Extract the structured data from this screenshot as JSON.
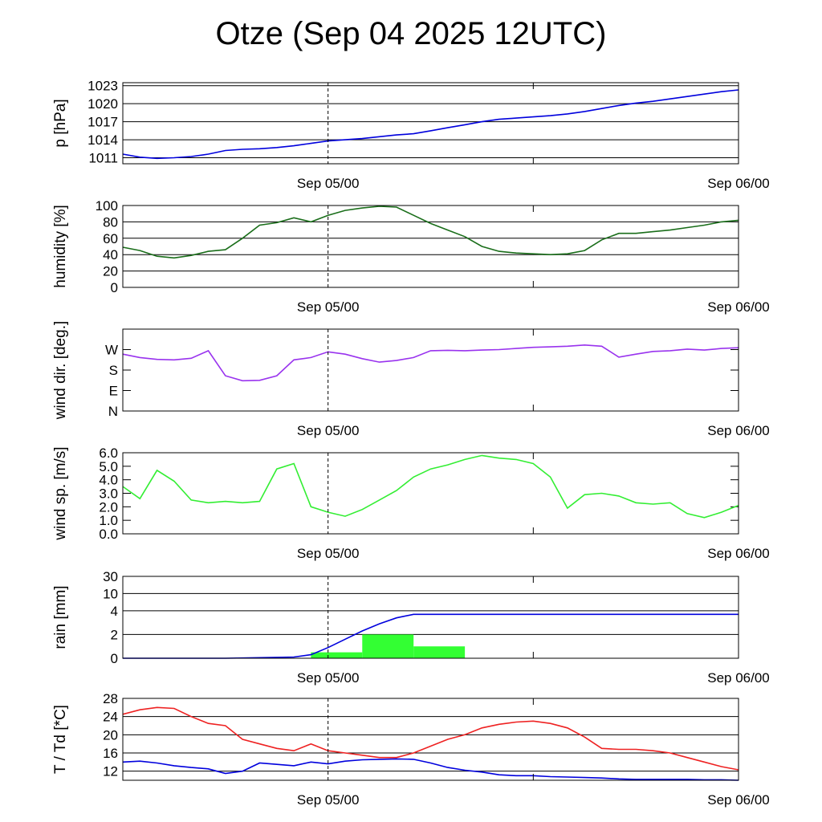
{
  "title": "Otze (Sep 04 2025 12UTC)",
  "chart_data": [
    {
      "type": "line",
      "ylabel": "p [hPa]",
      "x_ticks": [
        "Sep 05/00",
        "Sep 06/00"
      ],
      "x_range": [
        "Sep 04 12UTC",
        "Sep 06 00UTC"
      ],
      "ylim": [
        1010,
        1023.5
      ],
      "y_ticks": [
        1011,
        1014,
        1017,
        1020,
        1023
      ],
      "y_tick_labels": [
        "1011",
        "1014",
        "1017",
        "1020",
        "1023"
      ],
      "grid": true,
      "series": [
        {
          "color": "#0000dd",
          "x": [
            0,
            1,
            2,
            3,
            4,
            5,
            6,
            7,
            8,
            9,
            10,
            11,
            12,
            13,
            14,
            15,
            16,
            17,
            18,
            19,
            20,
            21,
            22,
            23,
            24,
            25,
            26,
            27,
            28,
            29,
            30,
            31,
            32,
            33,
            34,
            35,
            36
          ],
          "values": [
            1011.6,
            1011.1,
            1010.9,
            1011.0,
            1011.2,
            1011.6,
            1012.2,
            1012.4,
            1012.5,
            1012.7,
            1013.0,
            1013.4,
            1013.8,
            1014.0,
            1014.2,
            1014.5,
            1014.8,
            1015.0,
            1015.5,
            1016.0,
            1016.5,
            1017.0,
            1017.4,
            1017.6,
            1017.8,
            1018.0,
            1018.3,
            1018.7,
            1019.2,
            1019.7,
            1020.1,
            1020.4,
            1020.8,
            1021.2,
            1021.6,
            1022.0,
            1022.3
          ]
        }
      ]
    },
    {
      "type": "line",
      "ylabel": "humidity [%]",
      "x_ticks": [
        "Sep 05/00",
        "Sep 06/00"
      ],
      "ylim": [
        0,
        100
      ],
      "y_ticks": [
        0,
        20,
        40,
        60,
        80,
        100
      ],
      "y_tick_labels": [
        "0",
        "20",
        "40",
        "60",
        "80",
        "100"
      ],
      "grid": true,
      "series": [
        {
          "color": "#1a6e1a",
          "x": [
            0,
            1,
            2,
            3,
            4,
            5,
            6,
            7,
            8,
            9,
            10,
            11,
            12,
            13,
            14,
            15,
            16,
            17,
            18,
            19,
            20,
            21,
            22,
            23,
            24,
            25,
            26,
            27,
            28,
            29,
            30,
            31,
            32,
            33,
            34,
            35,
            36
          ],
          "values": [
            49,
            45,
            38,
            36,
            39,
            44,
            46,
            60,
            76,
            79,
            85,
            80,
            88,
            94,
            97,
            99,
            98,
            88,
            78,
            70,
            62,
            50,
            44,
            42,
            41,
            40,
            41,
            45,
            58,
            66,
            66,
            68,
            70,
            73,
            76,
            80,
            82
          ]
        }
      ]
    },
    {
      "type": "line",
      "ylabel": "wind dir. [deg.]",
      "x_ticks": [
        "Sep 05/00",
        "Sep 06/00"
      ],
      "ylim": [
        0,
        360
      ],
      "y_ticks": [
        0,
        90,
        180,
        270
      ],
      "y_tick_labels": [
        "N",
        "E",
        "S",
        "W"
      ],
      "grid": false,
      "series": [
        {
          "color": "#9933ee",
          "x": [
            0,
            1,
            2,
            3,
            4,
            5,
            6,
            7,
            8,
            9,
            10,
            11,
            12,
            13,
            14,
            15,
            16,
            17,
            18,
            19,
            20,
            21,
            22,
            23,
            24,
            25,
            26,
            27,
            28,
            29,
            30,
            31,
            32,
            33,
            34,
            35,
            36
          ],
          "values": [
            250,
            235,
            227,
            225,
            232,
            265,
            155,
            133,
            135,
            155,
            225,
            235,
            260,
            250,
            230,
            215,
            222,
            235,
            265,
            267,
            265,
            268,
            270,
            275,
            280,
            282,
            285,
            290,
            285,
            237,
            250,
            262,
            265,
            272,
            268,
            275,
            278
          ]
        }
      ]
    },
    {
      "type": "line",
      "ylabel": "wind sp. [m/s]",
      "x_ticks": [
        "Sep 05/00",
        "Sep 06/00"
      ],
      "ylim": [
        0,
        6.0
      ],
      "y_ticks": [
        0,
        1,
        2,
        3,
        4,
        5,
        6
      ],
      "y_tick_labels": [
        "0.0",
        "1.0",
        "2.0",
        "3.0",
        "4.0",
        "5.0",
        "6.0"
      ],
      "grid": false,
      "series": [
        {
          "color": "#33ee33",
          "x": [
            0,
            1,
            2,
            3,
            4,
            5,
            6,
            7,
            8,
            9,
            10,
            11,
            12,
            13,
            14,
            15,
            16,
            17,
            18,
            19,
            20,
            21,
            22,
            23,
            24,
            25,
            26,
            27,
            28,
            29,
            30,
            31,
            32,
            33,
            34,
            35,
            36
          ],
          "values": [
            3.5,
            2.6,
            4.7,
            3.9,
            2.5,
            2.3,
            2.4,
            2.3,
            2.4,
            4.8,
            5.2,
            2.0,
            1.6,
            1.3,
            1.8,
            2.5,
            3.2,
            4.2,
            4.8,
            5.1,
            5.5,
            5.8,
            5.6,
            5.5,
            5.2,
            4.2,
            1.9,
            2.9,
            3.0,
            2.8,
            2.3,
            2.2,
            2.3,
            1.5,
            1.2,
            1.6,
            2.1
          ]
        }
      ]
    },
    {
      "type": "bar",
      "ylabel": "rain [mm]",
      "x_ticks": [
        "Sep 05/00",
        "Sep 06/00"
      ],
      "y_ticks": [
        0,
        2,
        4,
        10,
        30
      ],
      "y_tick_labels": [
        "0",
        "2",
        "4",
        "10",
        "30"
      ],
      "grid": true,
      "bars": [
        {
          "x_start": 11,
          "x_end": 14,
          "value": 0.5
        },
        {
          "x_start": 14,
          "x_end": 17,
          "value": 2.0
        },
        {
          "x_start": 17,
          "x_end": 20,
          "value": 1.0
        }
      ],
      "series": [
        {
          "color": "#0000dd",
          "x": [
            0,
            6,
            10,
            11,
            12,
            13,
            14,
            15,
            16,
            17,
            18,
            24,
            30,
            36
          ],
          "values": [
            0,
            0,
            0.1,
            0.3,
            0.9,
            1.6,
            2.3,
            2.9,
            3.4,
            3.7,
            3.7,
            3.7,
            3.7,
            3.7
          ]
        }
      ]
    },
    {
      "type": "line",
      "ylabel": "T / Td [*C]",
      "x_ticks": [
        "Sep 05/00",
        "Sep 06/00"
      ],
      "ylim": [
        10,
        28
      ],
      "y_ticks": [
        12,
        16,
        20,
        24,
        28
      ],
      "y_tick_labels": [
        "12",
        "16",
        "20",
        "24",
        "28"
      ],
      "grid": true,
      "series": [
        {
          "color": "#ee2222",
          "x": [
            0,
            1,
            2,
            3,
            4,
            5,
            6,
            7,
            8,
            9,
            10,
            11,
            12,
            13,
            14,
            15,
            16,
            17,
            18,
            19,
            20,
            21,
            22,
            23,
            24,
            25,
            26,
            27,
            28,
            29,
            30,
            31,
            32,
            33,
            34,
            35,
            36
          ],
          "values": [
            24.5,
            25.5,
            26.0,
            25.8,
            24.0,
            22.5,
            22.0,
            19.0,
            18.0,
            17.0,
            16.5,
            18.0,
            16.5,
            16.0,
            15.5,
            15.0,
            15.0,
            16.0,
            17.5,
            19.0,
            20.0,
            21.5,
            22.3,
            22.8,
            23.0,
            22.5,
            21.5,
            19.5,
            17.0,
            16.8,
            16.8,
            16.5,
            16.0,
            15.0,
            14.0,
            13.0,
            12.3
          ]
        },
        {
          "color": "#0000dd",
          "x": [
            0,
            1,
            2,
            3,
            4,
            5,
            6,
            7,
            8,
            9,
            10,
            11,
            12,
            13,
            14,
            15,
            16,
            17,
            18,
            19,
            20,
            21,
            22,
            23,
            24,
            25,
            26,
            27,
            28,
            29,
            30,
            31,
            32,
            33,
            34,
            35,
            36
          ],
          "values": [
            14.0,
            14.2,
            13.8,
            13.2,
            12.8,
            12.5,
            11.5,
            12.0,
            13.8,
            13.5,
            13.2,
            14.0,
            13.6,
            14.2,
            14.5,
            14.6,
            14.7,
            14.6,
            13.8,
            12.8,
            12.2,
            11.8,
            11.2,
            11.0,
            11.0,
            10.8,
            10.7,
            10.6,
            10.5,
            10.3,
            10.2,
            10.2,
            10.2,
            10.2,
            10.1,
            10.1,
            10.0
          ]
        }
      ]
    }
  ]
}
